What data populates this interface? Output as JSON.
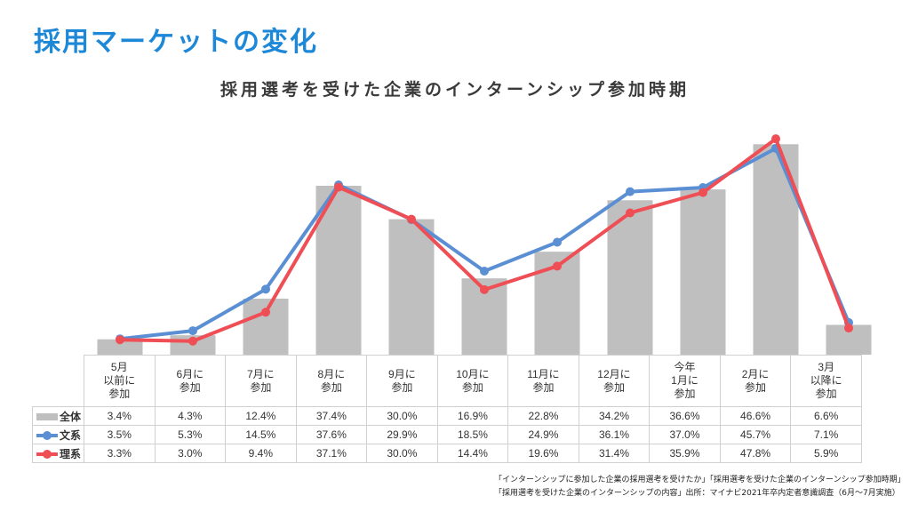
{
  "page_title": "採用マーケットの変化",
  "chart_data": {
    "type": "bar",
    "title": "採用選考を受けた企業のインターンシップ参加時期",
    "categories": [
      "5月\n以前に\n参加",
      "6月に\n参加",
      "7月に\n参加",
      "8月に\n参加",
      "9月に\n参加",
      "10月に\n参加",
      "11月に\n参加",
      "12月に\n参加",
      "今年\n1月に\n参加",
      "2月に\n参加",
      "3月\n以降に\n参加"
    ],
    "series": [
      {
        "name": "全体",
        "kind": "bar",
        "color": "#bfbfbf",
        "values": [
          3.4,
          4.3,
          12.4,
          37.4,
          30.0,
          16.9,
          22.8,
          34.2,
          36.6,
          46.6,
          6.6
        ],
        "labels": [
          "3.4%",
          "4.3%",
          "12.4%",
          "37.4%",
          "30.0%",
          "16.9%",
          "22.8%",
          "34.2%",
          "36.6%",
          "46.6%",
          "6.6%"
        ]
      },
      {
        "name": "文系",
        "kind": "line",
        "color": "#5b8fd4",
        "values": [
          3.5,
          5.3,
          14.5,
          37.6,
          29.9,
          18.5,
          24.9,
          36.1,
          37.0,
          45.7,
          7.1
        ],
        "labels": [
          "3.5%",
          "5.3%",
          "14.5%",
          "37.6%",
          "29.9%",
          "18.5%",
          "24.9%",
          "36.1%",
          "37.0%",
          "45.7%",
          "7.1%"
        ]
      },
      {
        "name": "理系",
        "kind": "line",
        "color": "#ef4e55",
        "values": [
          3.3,
          3.0,
          9.4,
          37.1,
          30.0,
          14.4,
          19.6,
          31.4,
          35.9,
          47.8,
          5.9
        ],
        "labels": [
          "3.3%",
          "3.0%",
          "9.4%",
          "37.1%",
          "30.0%",
          "14.4%",
          "19.6%",
          "31.4%",
          "35.9%",
          "47.8%",
          "5.9%"
        ]
      }
    ],
    "ylim": [
      0,
      50
    ],
    "grid": false,
    "legend": "table"
  },
  "source": {
    "line1": "「インターンシップに参加した企業の採用選考を受けたか」「採用選考を受けた企業のインターンシップ参加時期」",
    "line2": "「採用選考を受けた企業のインターンシップの内容」出所：マイナビ2021年卒内定者意識調査（6月～7月実施）"
  }
}
